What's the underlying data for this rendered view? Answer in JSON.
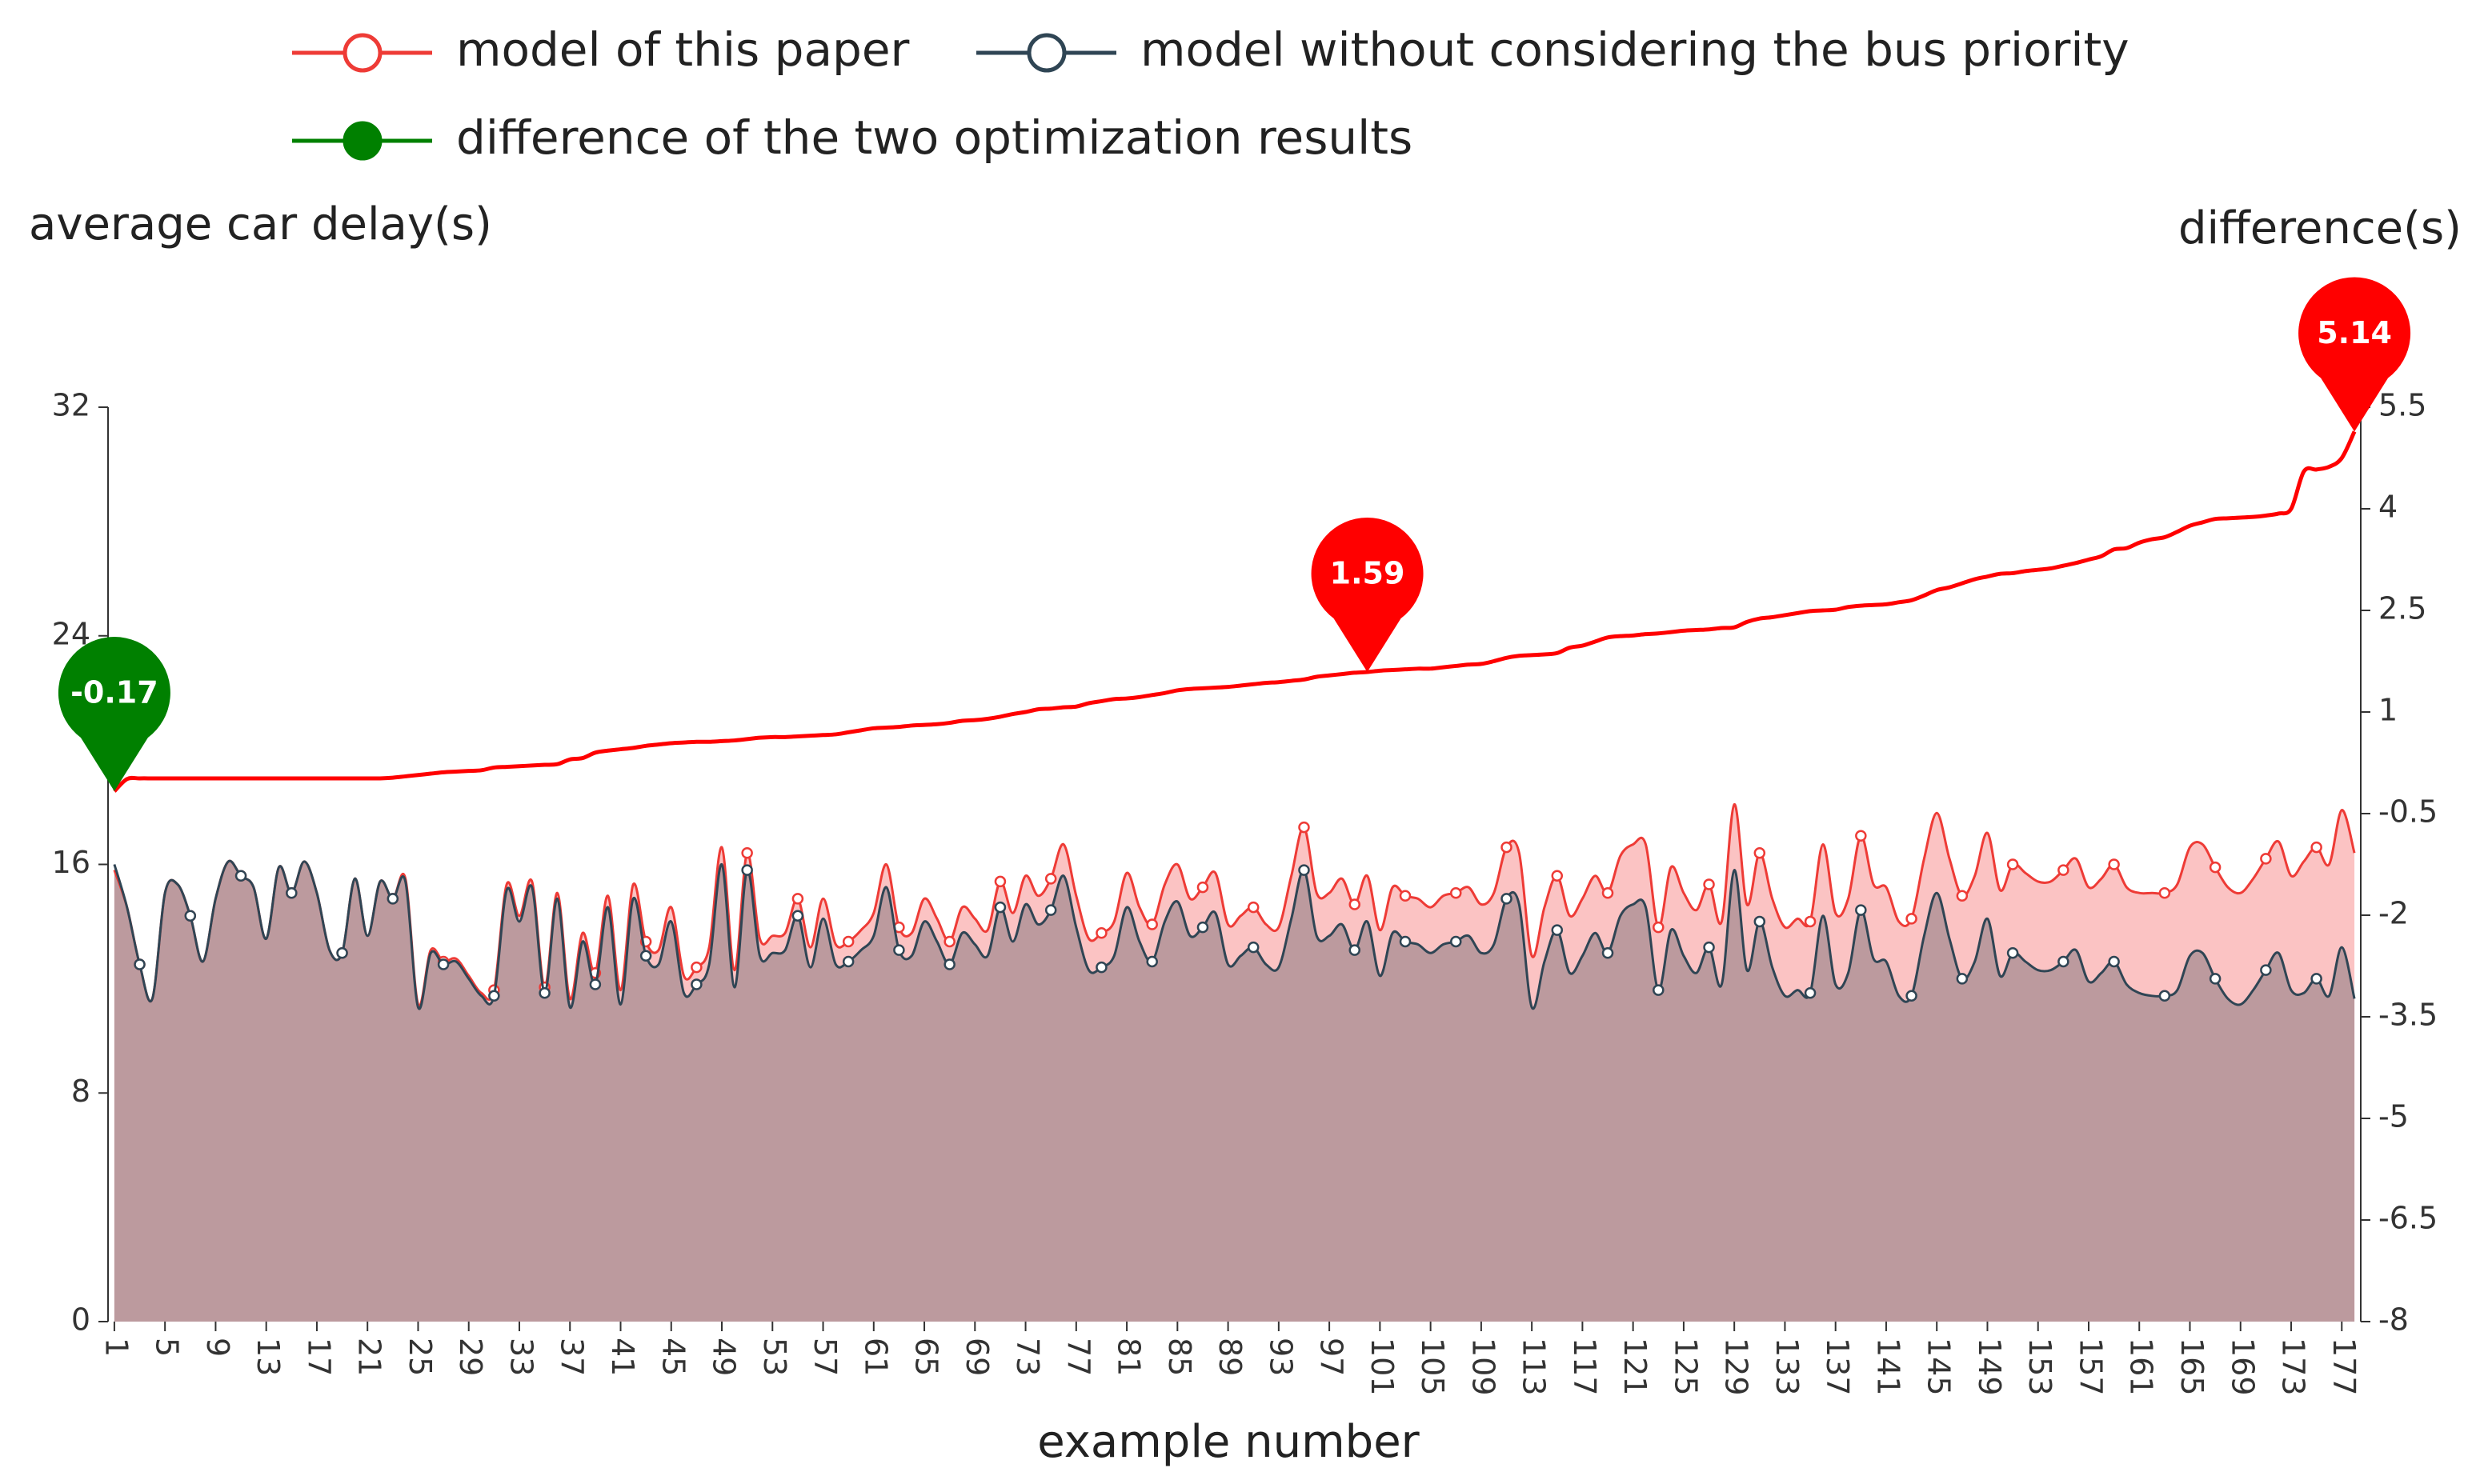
{
  "chart_data": {
    "type": "line-area",
    "y_axis_label": "average car delay(s)",
    "y2_axis_label": "difference(s)",
    "x_axis_label": "example number",
    "categories": [
      1,
      null,
      null,
      null,
      5,
      null,
      null,
      null,
      9,
      null,
      null,
      null,
      13,
      null,
      null,
      null,
      17,
      null,
      null,
      null,
      21,
      null,
      null,
      null,
      25,
      null,
      null,
      null,
      29,
      null,
      null,
      null,
      33,
      null,
      null,
      null,
      37,
      null,
      null,
      null,
      41,
      null,
      null,
      null,
      45,
      null,
      null,
      null,
      49,
      null,
      null,
      null,
      53,
      null,
      null,
      null,
      57,
      null,
      null,
      null,
      61,
      null,
      null,
      null,
      65,
      null,
      null,
      null,
      69,
      null,
      null,
      null,
      73,
      null,
      null,
      null,
      77,
      null,
      null,
      null,
      81,
      null,
      null,
      null,
      85,
      null,
      null,
      null,
      89,
      null,
      null,
      null,
      93,
      null,
      null,
      null,
      97,
      null,
      null,
      null,
      101,
      null,
      null,
      null,
      105,
      null,
      null,
      null,
      109,
      null,
      null,
      null,
      113,
      null,
      null,
      null,
      117,
      null,
      null,
      null,
      121,
      null,
      null,
      null,
      125,
      null,
      null,
      null,
      129,
      null,
      null,
      null,
      133,
      null,
      null,
      null,
      137,
      null,
      null,
      null,
      141,
      null,
      null,
      null,
      145,
      null,
      null,
      null,
      149,
      null,
      null,
      null,
      153,
      null,
      null,
      null,
      157,
      null,
      null,
      null,
      161,
      null,
      null,
      null,
      165,
      null,
      null,
      null,
      169,
      null,
      null,
      null,
      173,
      null,
      null,
      null,
      177,
      null
    ],
    "ylim": [
      0,
      32
    ],
    "yticks": [
      0,
      8,
      16,
      24,
      32
    ],
    "y2lim": [
      -8,
      5.5
    ],
    "y2ticks": [
      -8,
      -6.5,
      -5,
      -3.5,
      -2,
      -0.5,
      1,
      2.5,
      4,
      5.5
    ],
    "series": [
      {
        "name": "model of this paper",
        "color": "#ee3b36",
        "area_color": "#fbc3c3",
        "symbol": "emptyCircle",
        "values": [
          15.8,
          14.5,
          12.5,
          11.3,
          15.0,
          15.3,
          14.2,
          12.6,
          14.8,
          16.1,
          15.6,
          15.2,
          13.4,
          15.9,
          15.0,
          16.1,
          15.0,
          13.0,
          12.9,
          15.5,
          13.5,
          15.4,
          14.8,
          15.5,
          11.1,
          13.0,
          12.6,
          12.7,
          12.1,
          11.5,
          11.6,
          15.3,
          14.2,
          15.4,
          11.7,
          15.0,
          11.3,
          13.6,
          12.2,
          14.9,
          11.6,
          15.3,
          13.3,
          13.0,
          14.5,
          12.1,
          12.4,
          13.1,
          16.6,
          12.3,
          16.4,
          13.4,
          13.5,
          13.6,
          14.8,
          13.1,
          14.8,
          13.2,
          13.3,
          13.7,
          14.3,
          16.0,
          13.8,
          13.6,
          14.8,
          14.1,
          13.3,
          14.5,
          14.1,
          13.7,
          15.4,
          14.3,
          15.6,
          14.9,
          15.5,
          16.7,
          14.9,
          13.4,
          13.6,
          14.0,
          15.7,
          14.5,
          13.9,
          15.3,
          16.0,
          14.8,
          15.2,
          15.7,
          13.9,
          14.2,
          14.5,
          13.9,
          13.8,
          15.6,
          17.3,
          15.0,
          15.0,
          15.5,
          14.6,
          15.6,
          13.7,
          15.2,
          14.9,
          14.8,
          14.5,
          14.9,
          15.0,
          15.2,
          14.6,
          15.0,
          16.6,
          16.4,
          12.8,
          14.5,
          15.6,
          14.2,
          14.8,
          15.6,
          15.0,
          16.3,
          16.7,
          16.7,
          13.8,
          15.9,
          15.0,
          14.4,
          15.3,
          14.0,
          18.1,
          14.6,
          16.4,
          14.8,
          13.8,
          14.1,
          14.0,
          16.7,
          14.3,
          14.8,
          17.0,
          15.3,
          15.2,
          14.0,
          14.1,
          16.2,
          17.8,
          16.2,
          14.9,
          15.6,
          17.1,
          15.1,
          16.0,
          15.7,
          15.4,
          15.4,
          15.8,
          16.2,
          15.2,
          15.5,
          16.0,
          15.2,
          15.0,
          15.0,
          15.0,
          15.3,
          16.6,
          16.7,
          15.9,
          15.2,
          15.0,
          15.5,
          16.2,
          16.8,
          15.6,
          16.1,
          16.6,
          16.0,
          17.9,
          16.4
        ]
      },
      {
        "name": "model without considering the bus priority",
        "color": "#2f4554",
        "area_color": "#bc9a9e",
        "symbol": "emptyCircle",
        "values": [
          16.0,
          14.5,
          12.5,
          11.3,
          15.0,
          15.3,
          14.2,
          12.6,
          14.8,
          16.1,
          15.6,
          15.2,
          13.4,
          15.9,
          15.0,
          16.1,
          15.0,
          13.0,
          12.9,
          15.5,
          13.5,
          15.4,
          14.8,
          15.4,
          11.0,
          12.9,
          12.5,
          12.6,
          12.0,
          11.4,
          11.4,
          15.1,
          14.0,
          15.2,
          11.5,
          14.8,
          11.0,
          13.3,
          11.8,
          14.5,
          11.1,
          14.8,
          12.8,
          12.5,
          14.0,
          11.5,
          11.8,
          12.5,
          16.0,
          11.7,
          15.8,
          12.8,
          12.9,
          13.0,
          14.2,
          12.4,
          14.1,
          12.5,
          12.6,
          13.0,
          13.5,
          15.2,
          13.0,
          12.8,
          14.0,
          13.3,
          12.5,
          13.6,
          13.2,
          12.8,
          14.5,
          13.3,
          14.6,
          13.9,
          14.4,
          15.6,
          13.8,
          12.3,
          12.4,
          12.8,
          14.5,
          13.3,
          12.6,
          14.0,
          14.7,
          13.5,
          13.8,
          14.3,
          12.5,
          12.8,
          13.1,
          12.5,
          12.4,
          14.1,
          15.8,
          13.5,
          13.5,
          13.9,
          13.0,
          14.0,
          12.1,
          13.6,
          13.3,
          13.2,
          12.9,
          13.2,
          13.3,
          13.5,
          12.9,
          13.2,
          14.8,
          14.6,
          11.0,
          12.6,
          13.7,
          12.2,
          12.8,
          13.6,
          12.9,
          14.2,
          14.6,
          14.5,
          11.6,
          13.7,
          12.8,
          12.2,
          13.1,
          11.8,
          15.8,
          12.3,
          14.0,
          12.4,
          11.4,
          11.6,
          11.5,
          14.2,
          11.8,
          12.2,
          14.4,
          12.7,
          12.6,
          11.4,
          11.4,
          13.5,
          15.0,
          13.4,
          12.0,
          12.6,
          14.1,
          12.1,
          12.9,
          12.6,
          12.3,
          12.3,
          12.6,
          13.0,
          11.9,
          12.2,
          12.6,
          11.8,
          11.5,
          11.4,
          11.4,
          11.6,
          12.8,
          12.9,
          12.0,
          11.3,
          11.1,
          11.6,
          12.3,
          12.9,
          11.6,
          11.5,
          12.0,
          11.4,
          13.1,
          11.3
        ]
      },
      {
        "name": "difference of the two optimization results",
        "color": "#008000",
        "line_color": "#ff0000",
        "axis": "y2",
        "symbol": "circle",
        "values": [
          -0.17,
          0.01,
          0.02,
          0.02,
          0.02,
          0.02,
          0.02,
          0.02,
          0.02,
          0.02,
          0.02,
          0.02,
          0.02,
          0.02,
          0.02,
          0.02,
          0.02,
          0.02,
          0.02,
          0.02,
          0.02,
          0.02,
          0.03,
          0.05,
          0.07,
          0.09,
          0.11,
          0.12,
          0.13,
          0.14,
          0.18,
          0.19,
          0.2,
          0.21,
          0.22,
          0.23,
          0.3,
          0.32,
          0.4,
          0.43,
          0.45,
          0.47,
          0.5,
          0.52,
          0.54,
          0.55,
          0.56,
          0.56,
          0.57,
          0.58,
          0.6,
          0.62,
          0.63,
          0.63,
          0.64,
          0.65,
          0.66,
          0.67,
          0.7,
          0.73,
          0.76,
          0.77,
          0.78,
          0.8,
          0.81,
          0.82,
          0.84,
          0.87,
          0.88,
          0.9,
          0.93,
          0.97,
          1.0,
          1.04,
          1.05,
          1.07,
          1.08,
          1.13,
          1.16,
          1.19,
          1.2,
          1.22,
          1.25,
          1.28,
          1.32,
          1.34,
          1.35,
          1.36,
          1.37,
          1.39,
          1.41,
          1.43,
          1.44,
          1.46,
          1.48,
          1.52,
          1.54,
          1.56,
          1.58,
          1.59,
          1.61,
          1.62,
          1.63,
          1.64,
          1.64,
          1.66,
          1.68,
          1.7,
          1.71,
          1.75,
          1.8,
          1.83,
          1.84,
          1.85,
          1.87,
          1.95,
          1.98,
          2.04,
          2.1,
          2.12,
          2.13,
          2.15,
          2.16,
          2.18,
          2.2,
          2.21,
          2.22,
          2.24,
          2.25,
          2.33,
          2.38,
          2.4,
          2.43,
          2.46,
          2.49,
          2.5,
          2.51,
          2.55,
          2.57,
          2.58,
          2.59,
          2.62,
          2.65,
          2.72,
          2.8,
          2.84,
          2.9,
          2.96,
          3.0,
          3.04,
          3.05,
          3.08,
          3.1,
          3.12,
          3.16,
          3.2,
          3.25,
          3.3,
          3.4,
          3.42,
          3.5,
          3.55,
          3.58,
          3.66,
          3.75,
          3.8,
          3.85,
          3.86,
          3.87,
          3.88,
          3.9,
          3.93,
          4.0,
          4.55,
          4.58,
          4.62,
          4.75,
          5.14
        ]
      }
    ],
    "mark_points": [
      {
        "x": 1,
        "value": -0.17,
        "color": "#008000"
      },
      {
        "x": 100,
        "value": 1.59,
        "color": "#ff0000"
      },
      {
        "x": 178,
        "value": 5.14,
        "color": "#ff0000"
      }
    ]
  }
}
